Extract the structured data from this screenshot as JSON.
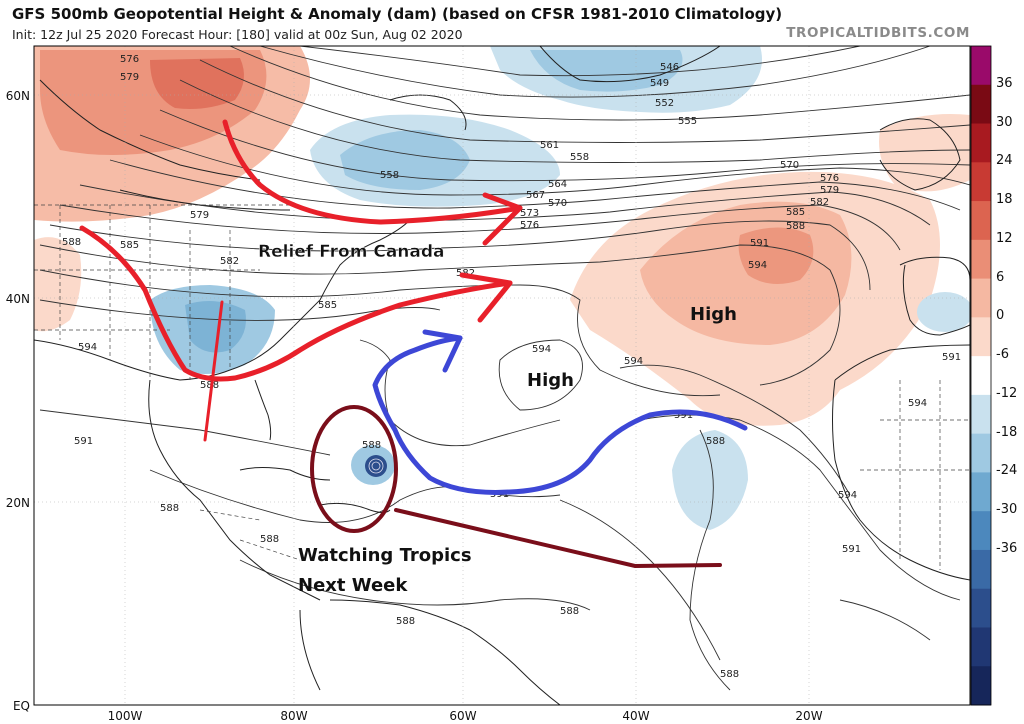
{
  "header": {
    "title": "GFS 500mb Geopotential Height & Anomaly (dam) (based on CFSR 1981-2010 Climatology)",
    "subtitle": "Init: 12z Jul 25 2020   Forecast Hour: [180]   valid at 00z Sun, Aug 02 2020",
    "brand": "TROPICALTIDBITS.COM"
  },
  "axes": {
    "lat_labels": [
      "60N",
      "40N",
      "20N",
      "EQ"
    ],
    "lon_labels": [
      "100W",
      "80W",
      "60W",
      "40W",
      "20W"
    ]
  },
  "colorbar": {
    "ticks": [
      "36",
      "30",
      "24",
      "18",
      "12",
      "6",
      "0",
      "-6",
      "-12",
      "-18",
      "-24",
      "-30",
      "-36"
    ],
    "colors": [
      "#9a0a6a",
      "#7a0a14",
      "#a81a20",
      "#c83a33",
      "#dc6450",
      "#ea8e76",
      "#f5b8a2",
      "#fbd9ca",
      "#ffffff",
      "#c9e1ee",
      "#9fc9e2",
      "#6fa9d0",
      "#4c88bd",
      "#3a6aa6",
      "#2c4e8c",
      "#203773",
      "#16265a"
    ]
  },
  "contour_labels": [
    "576",
    "579",
    "558",
    "561",
    "564",
    "567",
    "570",
    "573",
    "576",
    "546",
    "549",
    "552",
    "555",
    "558",
    "570",
    "576",
    "579",
    "582",
    "585",
    "588",
    "591",
    "594",
    "579",
    "585",
    "588",
    "582",
    "585",
    "582",
    "594",
    "588",
    "594",
    "594",
    "594",
    "591",
    "591",
    "588",
    "591",
    "588",
    "588",
    "594",
    "591",
    "588",
    "588",
    "588",
    "588",
    "591"
  ],
  "annotations": {
    "relief": "Relief From Canada",
    "high_east": "High",
    "high_center": "High",
    "tropics_line1": "Watching Tropics",
    "tropics_line2": "Next Week"
  }
}
